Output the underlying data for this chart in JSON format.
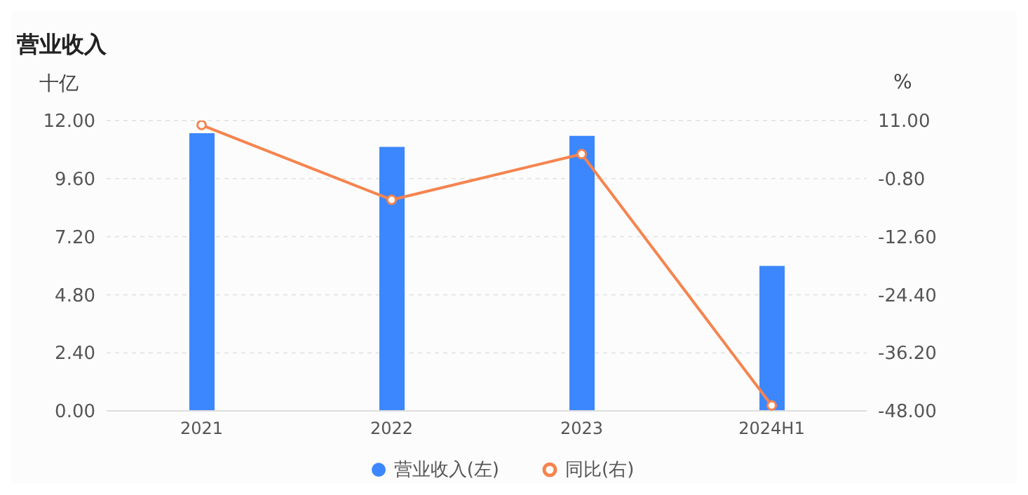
{
  "chart_data": {
    "type": "bar",
    "title": "营业收入",
    "ylabel": "十亿",
    "y2label": "%",
    "categories": [
      "2021",
      "2022",
      "2023",
      "2024H1"
    ],
    "series": [
      {
        "name": "营业收入(左)",
        "color": "#3c87fd",
        "values": [
          11.48,
          10.91,
          11.37,
          5.99
        ]
      },
      {
        "name": "同比(右)",
        "type": "line",
        "axis": "y2",
        "color": "#f5844f",
        "values": [
          10.1,
          -5.1,
          4.2,
          -46.9
        ]
      }
    ],
    "ylim": [
      0,
      12
    ],
    "yticks": [
      {
        "value": 0,
        "label": "0.00"
      },
      {
        "value": 2.4,
        "label": "2.40"
      },
      {
        "value": 4.8,
        "label": "4.80"
      },
      {
        "value": 7.2,
        "label": "7.20"
      },
      {
        "value": 9.6,
        "label": "9.60"
      },
      {
        "value": 12,
        "label": "12.00"
      }
    ],
    "y2lim": [
      -48,
      11
    ],
    "y2ticks": [
      {
        "value": -48,
        "label": "-48.00"
      },
      {
        "value": -36.2,
        "label": "-36.20"
      },
      {
        "value": -24.4,
        "label": "-24.40"
      },
      {
        "value": -12.6,
        "label": "-12.60"
      },
      {
        "value": -0.8,
        "label": "-0.80"
      },
      {
        "value": 11,
        "label": "11.00"
      }
    ],
    "grid": "y",
    "legend": "bottom",
    "marker": "circle",
    "line_style": "solid"
  }
}
